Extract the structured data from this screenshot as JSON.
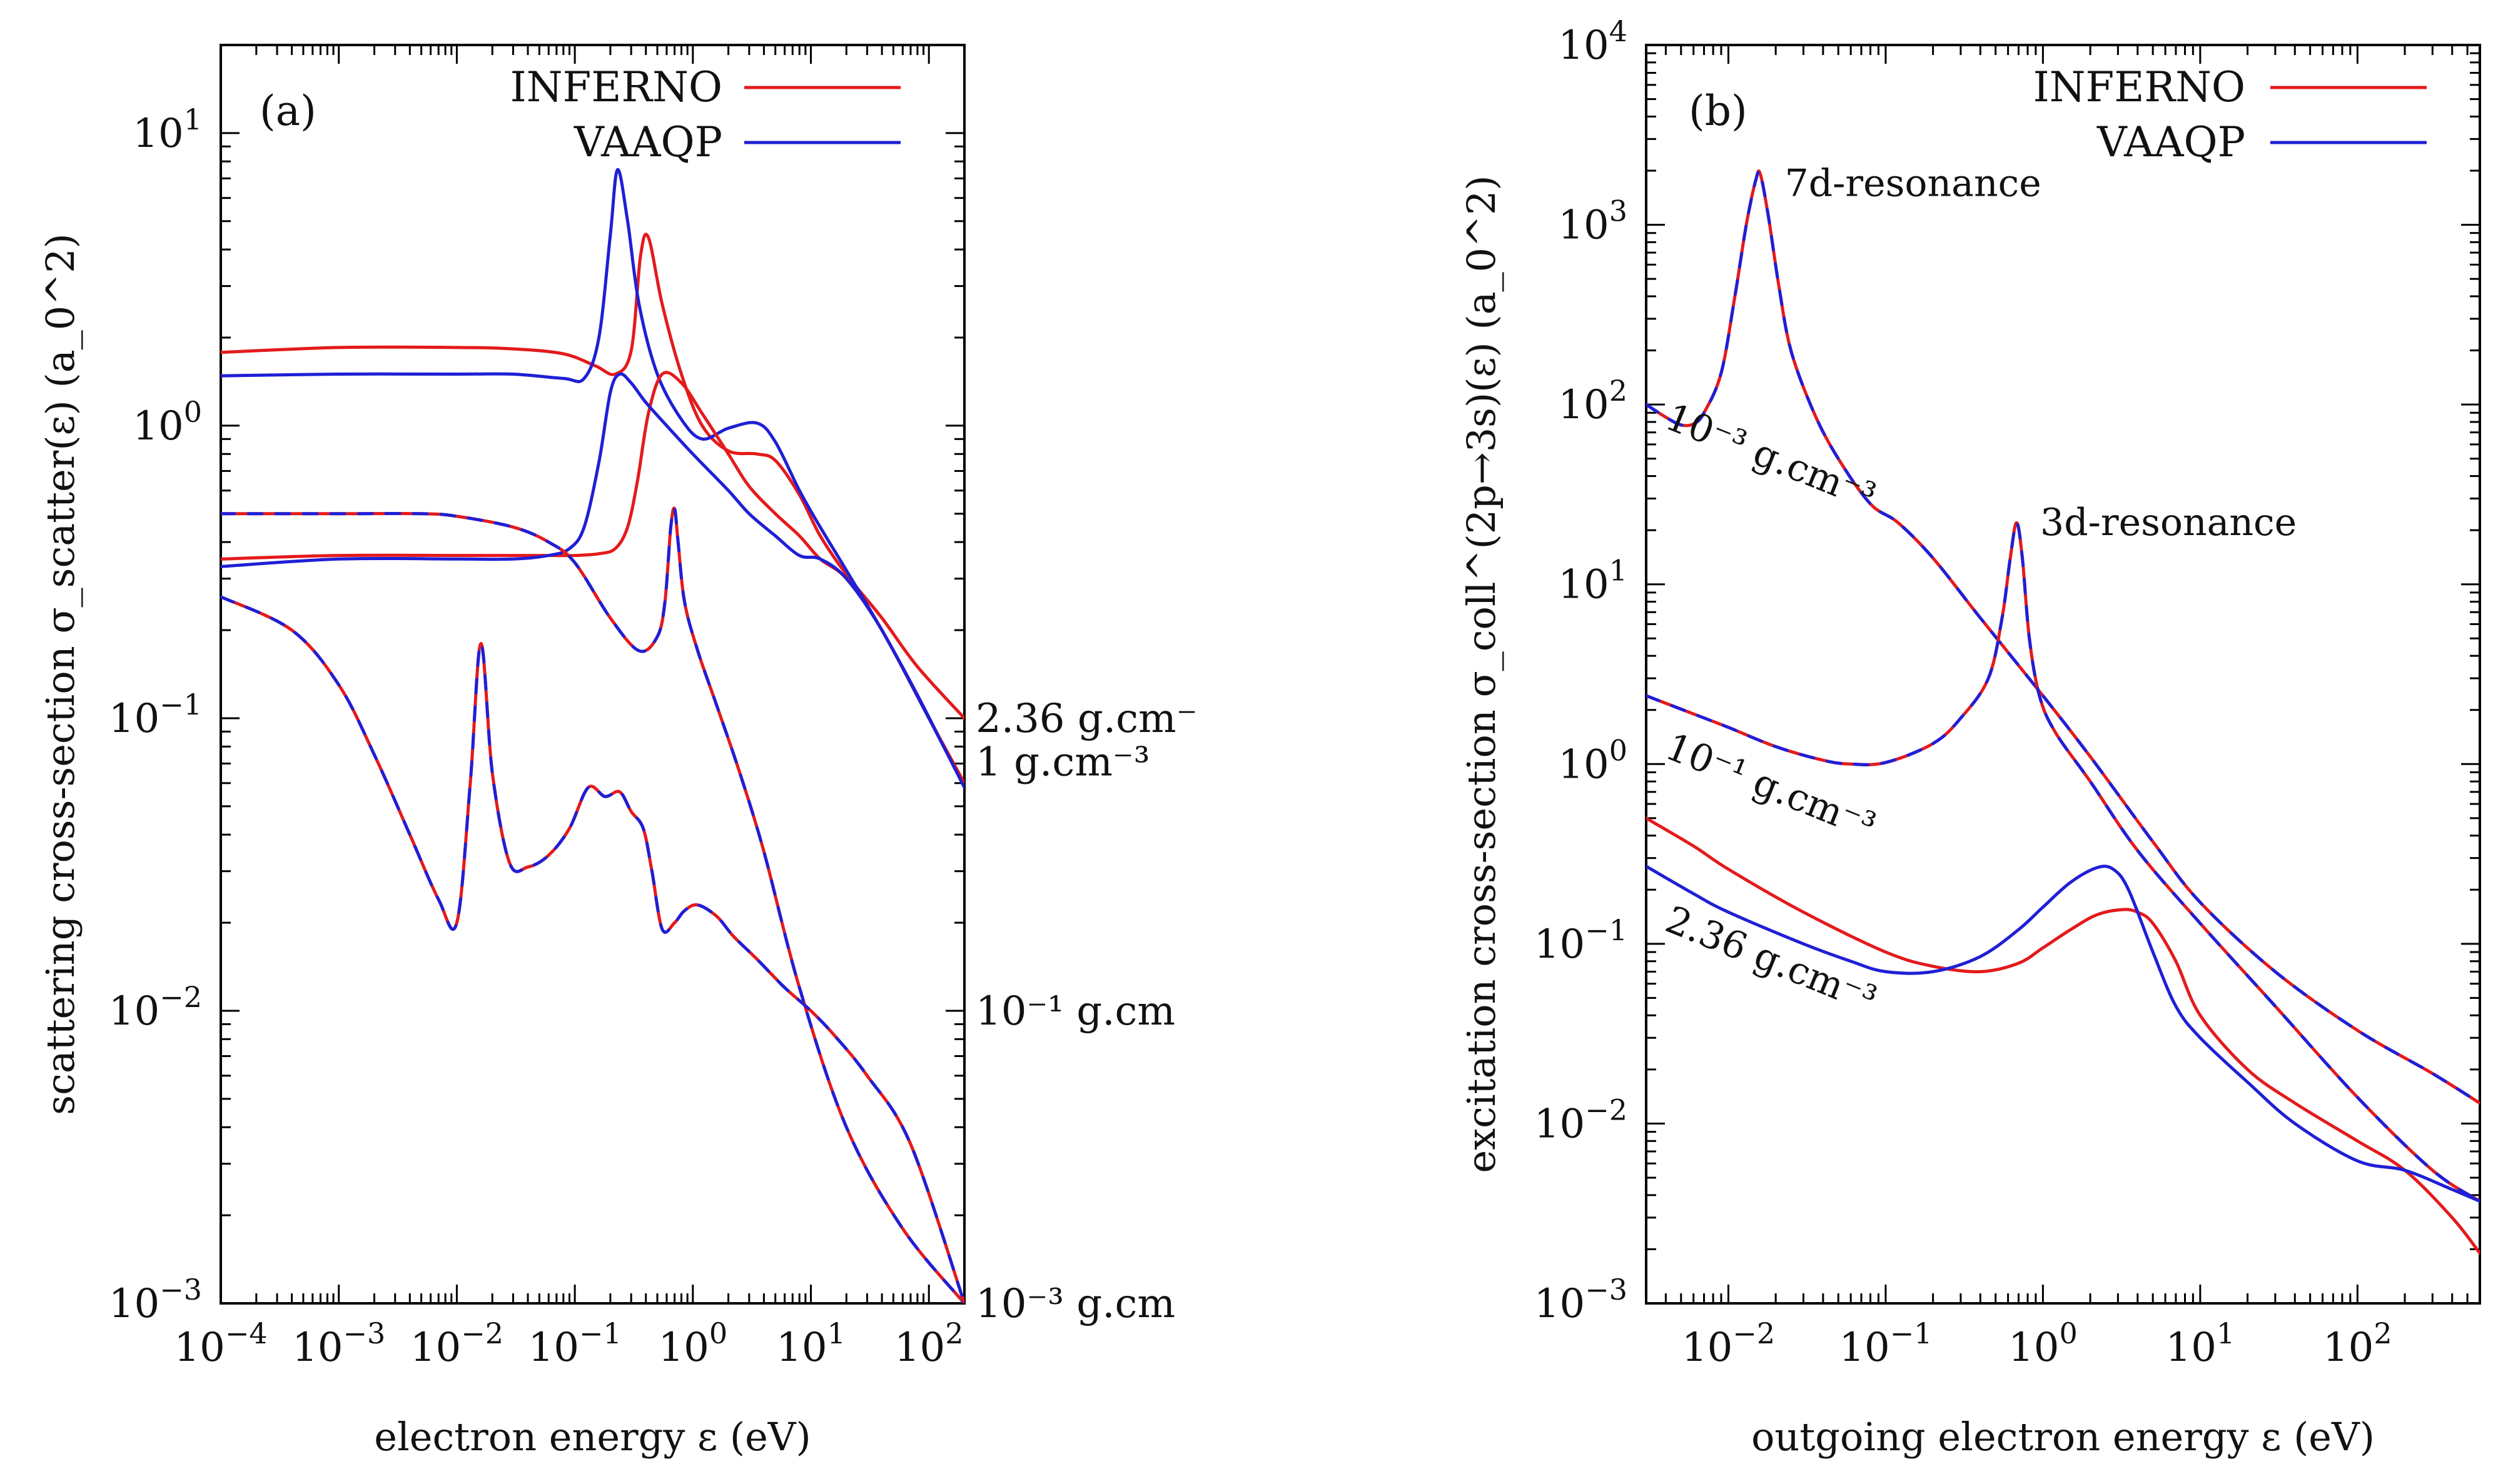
{
  "chart_data": [
    {
      "type": "line",
      "panel_label": "(a)",
      "xlabel": "electron energy ε (eV)",
      "ylabel": "scattering cross-section σ_scatter(ε) (a_0^2)",
      "x_scale": "log",
      "y_scale": "log",
      "xlim": [
        0.0001,
        200
      ],
      "ylim": [
        0.001,
        20
      ],
      "x_ticks": [
        {
          "v": 0.0001,
          "m": "10",
          "e": "−4"
        },
        {
          "v": 0.001,
          "m": "10",
          "e": "−3"
        },
        {
          "v": 0.01,
          "m": "10",
          "e": "−2"
        },
        {
          "v": 0.1,
          "m": "10",
          "e": "−1"
        },
        {
          "v": 1,
          "m": "10",
          "e": "0"
        },
        {
          "v": 10,
          "m": "10",
          "e": "1"
        },
        {
          "v": 100,
          "m": "10",
          "e": "2"
        }
      ],
      "y_ticks": [
        {
          "v": 0.001,
          "m": "10",
          "e": "−3"
        },
        {
          "v": 0.01,
          "m": "10",
          "e": "−2"
        },
        {
          "v": 0.1,
          "m": "10",
          "e": "−1"
        },
        {
          "v": 1,
          "m": "10",
          "e": "0"
        },
        {
          "v": 10,
          "m": "10",
          "e": "1"
        }
      ],
      "legend": [
        {
          "name": "INFERNO",
          "color": "#e41a1c"
        },
        {
          "name": "VAAQP",
          "color": "#1f1fd6"
        }
      ],
      "right_labels": [
        {
          "text": "2.36 g.cm⁻",
          "y": 0.1
        },
        {
          "text": "1 g.cm⁻³",
          "y": 0.071
        },
        {
          "text": "10⁻¹ g.cm",
          "y": 0.01
        },
        {
          "text": "10⁻³ g.cm",
          "y": 0.001
        }
      ],
      "series": [
        {
          "legend": "INFERNO",
          "color": "#e41a1c",
          "x": [
            0.0001,
            0.001,
            0.01,
            0.03,
            0.08,
            0.15,
            0.22,
            0.3,
            0.36,
            0.42,
            0.55,
            0.8,
            1.2,
            2,
            3.5,
            5,
            8,
            12,
            20,
            40,
            80,
            200
          ],
          "y": [
            1.78,
            1.85,
            1.85,
            1.83,
            1.76,
            1.6,
            1.5,
            1.8,
            3.8,
            4.4,
            2.6,
            1.5,
            1.0,
            0.82,
            0.8,
            0.76,
            0.58,
            0.42,
            0.31,
            0.22,
            0.15,
            0.1
          ]
        },
        {
          "legend": "VAAQP",
          "color": "#1f1fd6",
          "x": [
            0.0001,
            0.001,
            0.01,
            0.03,
            0.08,
            0.12,
            0.16,
            0.2,
            0.23,
            0.28,
            0.35,
            0.5,
            0.8,
            1.2,
            2,
            3.5,
            5,
            8,
            12,
            20,
            40,
            80,
            200
          ],
          "y": [
            1.48,
            1.5,
            1.5,
            1.5,
            1.45,
            1.45,
            2.0,
            4.5,
            7.5,
            5.0,
            2.6,
            1.5,
            1.05,
            0.9,
            0.98,
            1.02,
            0.88,
            0.6,
            0.45,
            0.32,
            0.2,
            0.12,
            0.058
          ]
        },
        {
          "legend": "INFERNO",
          "color": "#e41a1c",
          "x": [
            0.0001,
            0.001,
            0.01,
            0.03,
            0.06,
            0.1,
            0.16,
            0.22,
            0.28,
            0.34,
            0.42,
            0.55,
            0.8,
            1.2,
            2,
            3,
            5,
            8,
            12,
            20,
            40,
            100,
            200
          ],
          "y": [
            0.35,
            0.36,
            0.36,
            0.36,
            0.36,
            0.36,
            0.365,
            0.38,
            0.45,
            0.65,
            1.1,
            1.5,
            1.4,
            1.1,
            0.8,
            0.62,
            0.5,
            0.42,
            0.35,
            0.3,
            0.2,
            0.1,
            0.06
          ]
        },
        {
          "legend": "VAAQP",
          "color": "#1f1fd6",
          "x": [
            0.0001,
            0.001,
            0.01,
            0.03,
            0.06,
            0.09,
            0.12,
            0.16,
            0.2,
            0.24,
            0.3,
            0.4,
            0.6,
            1,
            2,
            3,
            5,
            8,
            12,
            20,
            40,
            100,
            200
          ],
          "y": [
            0.33,
            0.35,
            0.35,
            0.35,
            0.36,
            0.38,
            0.45,
            0.75,
            1.3,
            1.5,
            1.4,
            1.2,
            1.0,
            0.8,
            0.6,
            0.5,
            0.42,
            0.36,
            0.35,
            0.3,
            0.2,
            0.1,
            0.058
          ]
        },
        {
          "legend": "INFERNO",
          "color": "#e41a1c",
          "x": [
            0.0001,
            0.001,
            0.005,
            0.01,
            0.03,
            0.06,
            0.1,
            0.2,
            0.35,
            0.5,
            0.58,
            0.65,
            0.7,
            0.75,
            0.85,
            1.1,
            1.6,
            2.5,
            4,
            8,
            20,
            60,
            200
          ],
          "y": [
            0.5,
            0.5,
            0.5,
            0.49,
            0.45,
            0.4,
            0.34,
            0.22,
            0.17,
            0.19,
            0.25,
            0.45,
            0.52,
            0.4,
            0.25,
            0.17,
            0.11,
            0.065,
            0.035,
            0.012,
            0.004,
            0.0018,
            0.001
          ]
        },
        {
          "legend": "INFERNO",
          "color": "#e41a1c",
          "x": [
            0.0001,
            0.0004,
            0.001,
            0.002,
            0.004,
            0.007,
            0.01,
            0.013,
            0.016,
            0.02,
            0.028,
            0.04,
            0.06,
            0.09,
            0.13,
            0.18,
            0.24,
            0.3,
            0.38,
            0.45,
            0.55,
            0.7,
            0.85,
            1.1,
            1.6,
            2.2,
            3.5,
            6,
            10,
            16,
            30,
            70,
            200
          ],
          "y": [
            0.26,
            0.2,
            0.13,
            0.075,
            0.04,
            0.024,
            0.02,
            0.06,
            0.18,
            0.065,
            0.032,
            0.031,
            0.034,
            0.042,
            0.058,
            0.054,
            0.056,
            0.048,
            0.042,
            0.03,
            0.019,
            0.02,
            0.022,
            0.023,
            0.021,
            0.018,
            0.015,
            0.012,
            0.01,
            0.0082,
            0.006,
            0.0035,
            0.001
          ]
        }
      ]
    },
    {
      "type": "line",
      "panel_label": "(b)",
      "xlabel": "outgoing electron energy ε (eV)",
      "ylabel": "excitation cross-section σ_coll^(2p→3s)(ε) (a_0^2)",
      "x_scale": "log",
      "y_scale": "log",
      "xlim": [
        0.003,
        600
      ],
      "ylim": [
        0.001,
        10000
      ],
      "x_ticks": [
        {
          "v": 0.01,
          "m": "10",
          "e": "−2"
        },
        {
          "v": 0.1,
          "m": "10",
          "e": "−1"
        },
        {
          "v": 1,
          "m": "10",
          "e": "0"
        },
        {
          "v": 10,
          "m": "10",
          "e": "1"
        },
        {
          "v": 100,
          "m": "10",
          "e": "2"
        }
      ],
      "y_ticks": [
        {
          "v": 0.001,
          "m": "10",
          "e": "−3"
        },
        {
          "v": 0.01,
          "m": "10",
          "e": "−2"
        },
        {
          "v": 0.1,
          "m": "10",
          "e": "−1"
        },
        {
          "v": 1,
          "m": "10",
          "e": "0"
        },
        {
          "v": 10,
          "m": "10",
          "e": "1"
        },
        {
          "v": 100,
          "m": "10",
          "e": "2"
        },
        {
          "v": 1000,
          "m": "10",
          "e": "3"
        },
        {
          "v": 10000,
          "m": "10",
          "e": "4"
        }
      ],
      "legend": [
        {
          "name": "INFERNO",
          "color": "#e41a1c"
        },
        {
          "name": "VAAQP",
          "color": "#1f1fd6"
        }
      ],
      "annotations": [
        {
          "text": "7d-resonance",
          "x": 0.019,
          "y": 1700
        },
        {
          "text": "3d-resonance",
          "x": 0.8,
          "y": 22
        }
      ],
      "density_labels": [
        {
          "text": "10⁻³ g.cm⁻³",
          "x": 0.0032,
          "y": 75
        },
        {
          "text": "10⁻¹ g.cm⁻³",
          "x": 0.0032,
          "y": 1.1
        },
        {
          "text": "2.36 g.cm⁻³",
          "x": 0.0032,
          "y": 0.12
        }
      ],
      "series": [
        {
          "legend": "INFERNO",
          "color": "#e41a1c",
          "x": [
            0.003,
            0.004,
            0.005,
            0.006,
            0.007,
            0.009,
            0.011,
            0.013,
            0.015,
            0.016,
            0.018,
            0.021,
            0.025,
            0.035,
            0.05,
            0.08,
            0.12,
            0.2,
            0.4,
            1,
            2,
            5,
            10,
            30,
            100,
            300,
            600
          ],
          "y": [
            100,
            85,
            77,
            78,
            90,
            150,
            400,
            1000,
            1800,
            1900,
            1100,
            450,
            200,
            90,
            50,
            28,
            22,
            14,
            6.5,
            2.4,
            1.1,
            0.37,
            0.17,
            0.07,
            0.033,
            0.019,
            0.013
          ]
        },
        {
          "legend": "INFERNO",
          "color": "#e41a1c",
          "x": [
            0.003,
            0.006,
            0.01,
            0.02,
            0.04,
            0.06,
            0.1,
            0.2,
            0.3,
            0.45,
            0.55,
            0.62,
            0.68,
            0.74,
            0.82,
            0.95,
            1.2,
            2,
            4,
            10,
            30,
            100,
            300,
            600
          ],
          "y": [
            2.4,
            1.9,
            1.6,
            1.25,
            1.05,
            1.0,
            1.02,
            1.3,
            1.8,
            3.0,
            6.5,
            14,
            22,
            14,
            5.0,
            2.4,
            1.5,
            0.8,
            0.33,
            0.13,
            0.045,
            0.014,
            0.0055,
            0.0037
          ]
        },
        {
          "legend": "INFERNO",
          "color": "#e41a1c",
          "x": [
            0.003,
            0.006,
            0.01,
            0.03,
            0.1,
            0.2,
            0.4,
            0.7,
            1,
            1.5,
            2.2,
            3.2,
            4,
            5,
            7,
            10,
            20,
            40,
            100,
            200,
            400,
            600
          ],
          "y": [
            0.5,
            0.35,
            0.26,
            0.15,
            0.09,
            0.075,
            0.07,
            0.078,
            0.095,
            0.12,
            0.145,
            0.155,
            0.15,
            0.13,
            0.08,
            0.04,
            0.02,
            0.013,
            0.008,
            0.0055,
            0.003,
            0.0019
          ]
        },
        {
          "legend": "VAAQP",
          "color": "#1f1fd6",
          "x": [
            0.003,
            0.006,
            0.01,
            0.03,
            0.06,
            0.1,
            0.2,
            0.4,
            0.7,
            1,
            1.5,
            2.2,
            2.8,
            3.5,
            5,
            7,
            10,
            20,
            40,
            100,
            200,
            400,
            600
          ],
          "y": [
            0.27,
            0.19,
            0.15,
            0.1,
            0.08,
            0.07,
            0.07,
            0.085,
            0.12,
            0.16,
            0.22,
            0.265,
            0.26,
            0.2,
            0.09,
            0.045,
            0.03,
            0.017,
            0.01,
            0.0062,
            0.0055,
            0.0043,
            0.0037
          ]
        }
      ]
    }
  ]
}
